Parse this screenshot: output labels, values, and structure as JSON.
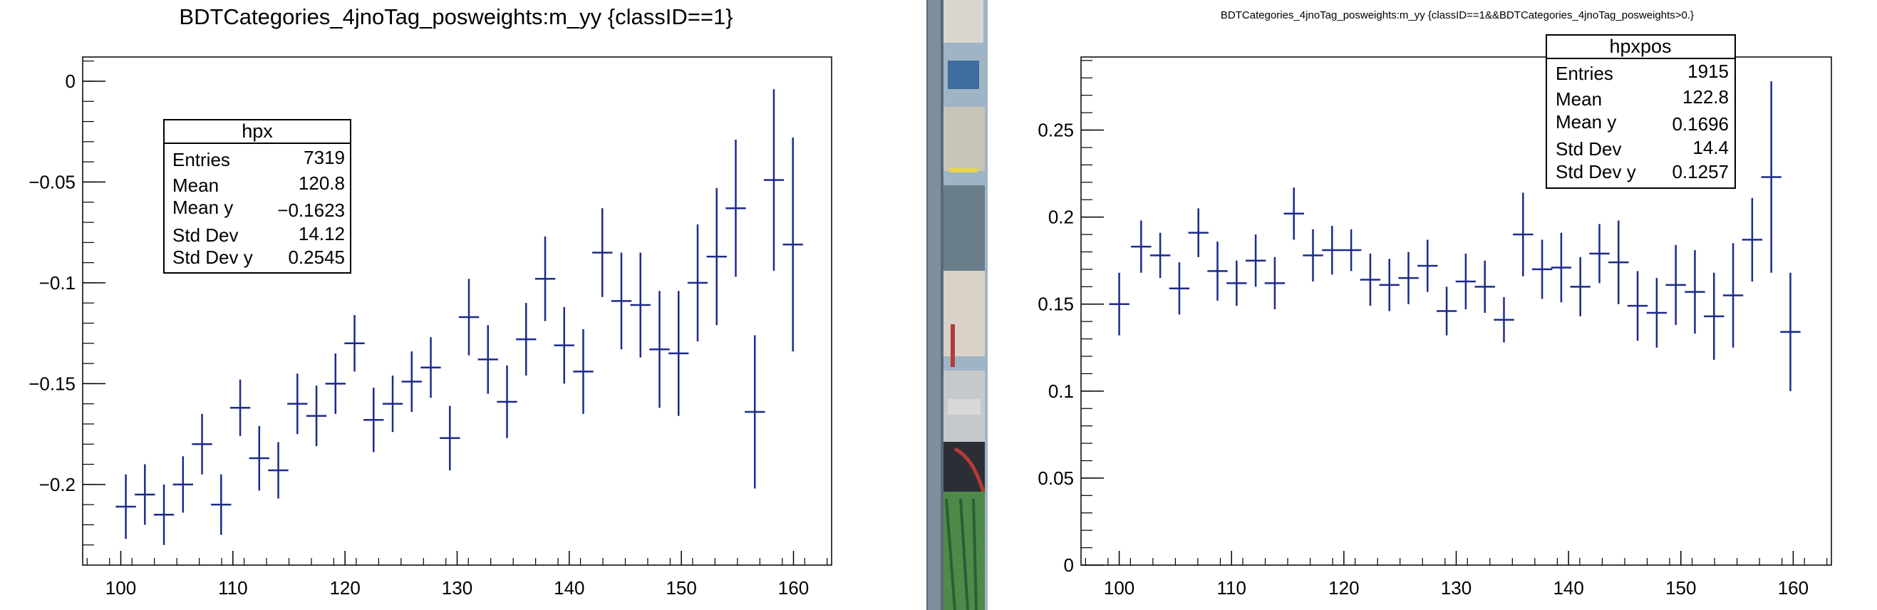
{
  "chart_data": [
    {
      "type": "scatter",
      "title": "BDTCategories_4jnoTag_posweights:m_yy {classID==1}",
      "xlim": [
        96.6,
        163.4
      ],
      "ylim": [
        -0.24,
        0.012
      ],
      "xticks": [
        100,
        110,
        120,
        130,
        140,
        150,
        160
      ],
      "xtick_labels": [
        "100",
        "110",
        "120",
        "130",
        "140",
        "150",
        "160"
      ],
      "yticks": [
        0,
        -0.05,
        -0.1,
        -0.15,
        -0.2
      ],
      "ytick_labels": [
        "0",
        "−0.05",
        "−0.1",
        "−0.15",
        "−0.2"
      ],
      "x_bin_half_width": 0.9,
      "x": [
        100.45,
        102.15,
        103.85,
        105.55,
        107.25,
        108.95,
        110.65,
        112.35,
        114.05,
        115.75,
        117.45,
        119.15,
        120.85,
        122.55,
        124.25,
        125.95,
        127.65,
        129.35,
        131.05,
        132.75,
        134.45,
        136.15,
        137.85,
        139.55,
        141.25,
        142.95,
        144.65,
        146.35,
        148.05,
        149.75,
        151.45,
        153.15,
        154.85,
        156.55,
        158.25,
        159.95
      ],
      "y": [
        -0.211,
        -0.205,
        -0.215,
        -0.2,
        -0.18,
        -0.21,
        -0.162,
        -0.187,
        -0.193,
        -0.16,
        -0.166,
        -0.15,
        -0.13,
        -0.168,
        -0.16,
        -0.149,
        -0.142,
        -0.177,
        -0.117,
        -0.138,
        -0.159,
        -0.128,
        -0.098,
        -0.131,
        -0.144,
        -0.085,
        -0.109,
        -0.111,
        -0.133,
        -0.135,
        -0.1,
        -0.087,
        -0.063,
        -0.164,
        -0.049,
        -0.081
      ],
      "yerr": [
        0.016,
        0.015,
        0.015,
        0.014,
        0.015,
        0.015,
        0.014,
        0.016,
        0.014,
        0.015,
        0.015,
        0.015,
        0.014,
        0.016,
        0.014,
        0.015,
        0.015,
        0.016,
        0.019,
        0.017,
        0.018,
        0.018,
        0.021,
        0.019,
        0.021,
        0.022,
        0.024,
        0.026,
        0.029,
        0.031,
        0.029,
        0.034,
        0.034,
        0.038,
        0.045,
        0.053
      ],
      "color": "#1c2a8c",
      "stats": {
        "name": "hpx",
        "rows": [
          {
            "label": "Entries",
            "value": "7319"
          },
          {
            "label": "Mean",
            "value": "120.8"
          },
          {
            "label": "Mean y",
            "value": "−0.1623"
          },
          {
            "label": "Std Dev",
            "value": "14.12"
          },
          {
            "label": "Std Dev y",
            "value": "0.2545"
          }
        ]
      }
    },
    {
      "type": "scatter",
      "title": "BDTCategories_4jnoTag_posweights:m_yy {classID==1&&BDTCategories_4jnoTag_posweights>0.}",
      "xlim": [
        96.6,
        163.4
      ],
      "ylim": [
        0,
        0.292
      ],
      "xticks": [
        100,
        110,
        120,
        130,
        140,
        150,
        160
      ],
      "xtick_labels": [
        "100",
        "110",
        "120",
        "130",
        "140",
        "150",
        "160"
      ],
      "yticks": [
        0,
        0.05,
        0.1,
        0.15,
        0.2,
        0.25
      ],
      "ytick_labels": [
        "0",
        "0.05",
        "0.1",
        "0.15",
        "0.2",
        "0.25"
      ],
      "x_bin_half_width": 0.9,
      "x": [
        100.0,
        101.95,
        103.65,
        105.35,
        107.05,
        108.75,
        110.45,
        112.15,
        113.85,
        115.55,
        117.25,
        118.95,
        120.65,
        122.35,
        124.05,
        125.75,
        127.45,
        129.15,
        130.85,
        132.55,
        134.25,
        135.95,
        137.65,
        139.35,
        141.05,
        142.75,
        144.45,
        146.15,
        147.85,
        149.55,
        151.25,
        152.95,
        154.65,
        156.35,
        158.05,
        159.75
      ],
      "y": [
        0.15,
        0.183,
        0.178,
        0.159,
        0.191,
        0.169,
        0.162,
        0.175,
        0.162,
        0.202,
        0.178,
        0.181,
        0.181,
        0.164,
        0.161,
        0.165,
        0.172,
        0.146,
        0.163,
        0.16,
        0.141,
        0.19,
        0.17,
        0.171,
        0.16,
        0.179,
        0.174,
        0.149,
        0.145,
        0.161,
        0.157,
        0.143,
        0.155,
        0.187,
        0.223,
        0.134
      ],
      "yerr": [
        0.018,
        0.015,
        0.013,
        0.015,
        0.014,
        0.017,
        0.013,
        0.015,
        0.015,
        0.015,
        0.015,
        0.014,
        0.012,
        0.015,
        0.015,
        0.015,
        0.015,
        0.014,
        0.016,
        0.015,
        0.013,
        0.024,
        0.017,
        0.02,
        0.017,
        0.017,
        0.024,
        0.02,
        0.02,
        0.023,
        0.024,
        0.025,
        0.03,
        0.024,
        0.055,
        0.034
      ],
      "color": "#1c2a8c",
      "stats": {
        "name": "hpxpos",
        "rows": [
          {
            "label": "Entries",
            "value": "1915"
          },
          {
            "label": "Mean",
            "value": "122.8"
          },
          {
            "label": "Mean y",
            "value": "0.1696"
          },
          {
            "label": "Std Dev",
            "value": "14.4"
          },
          {
            "label": "Std Dev y",
            "value": "0.1257"
          }
        ]
      }
    }
  ],
  "photo_strip": {
    "colors": [
      "#9fb4c4",
      "#3d6c9e",
      "#c9c4b8",
      "#6a7d8a",
      "#d8d2c8",
      "#b63a36",
      "#4f8a4a",
      "#2b2f35"
    ]
  }
}
